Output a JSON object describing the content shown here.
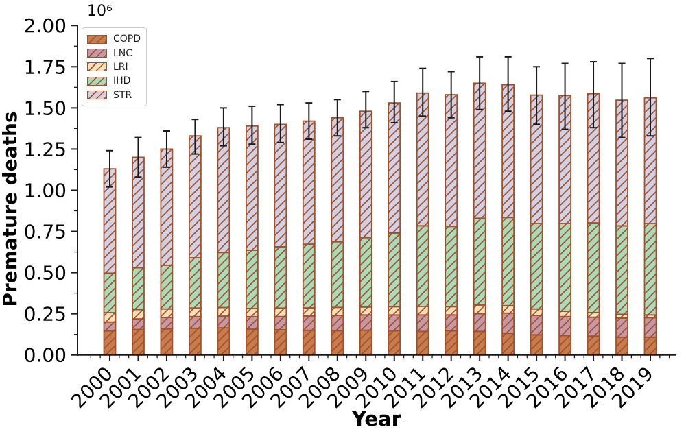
{
  "figure": {
    "ylabel": "Premature deaths",
    "xlabel": "Year",
    "offset_text": "10⁶"
  },
  "chart_data": {
    "type": "bar",
    "stacked": true,
    "title": "",
    "xlabel": "Year",
    "ylabel": "Premature deaths",
    "values_unit": "millions (axis shows 10^6)",
    "ylim": [
      0,
      2.0
    ],
    "y_ticks": [
      "0.00",
      "0.25",
      "0.50",
      "0.75",
      "1.00",
      "1.25",
      "1.50",
      "1.75",
      "2.00"
    ],
    "grid": false,
    "legend_position": "upper-left",
    "hatch_style": "/",
    "hatch_color": "#a0522d",
    "error_color": "#1a1a1a",
    "axis_color": "#1a1a1a",
    "categories": [
      "2000",
      "2001",
      "2002",
      "2003",
      "2004",
      "2005",
      "2006",
      "2007",
      "2008",
      "2009",
      "2010",
      "2011",
      "2012",
      "2013",
      "2014",
      "2015",
      "2016",
      "2017",
      "2018",
      "2019"
    ],
    "series": [
      {
        "name": "COPD",
        "color": "#c87c4d",
        "values": [
          0.146,
          0.155,
          0.158,
          0.162,
          0.165,
          0.157,
          0.153,
          0.15,
          0.147,
          0.15,
          0.146,
          0.143,
          0.146,
          0.143,
          0.131,
          0.122,
          0.118,
          0.115,
          0.108,
          0.108
        ]
      },
      {
        "name": "LNC",
        "color": "#c698a6",
        "values": [
          0.054,
          0.064,
          0.07,
          0.071,
          0.071,
          0.076,
          0.08,
          0.087,
          0.093,
          0.093,
          0.097,
          0.1,
          0.097,
          0.107,
          0.123,
          0.118,
          0.115,
          0.114,
          0.116,
          0.118
        ]
      },
      {
        "name": "LRI",
        "color": "#f8dfba",
        "values": [
          0.057,
          0.056,
          0.051,
          0.052,
          0.052,
          0.049,
          0.052,
          0.049,
          0.049,
          0.048,
          0.05,
          0.052,
          0.05,
          0.053,
          0.045,
          0.039,
          0.032,
          0.028,
          0.023,
          0.017
        ]
      },
      {
        "name": "IHD",
        "color": "#aadab9",
        "values": [
          0.24,
          0.254,
          0.266,
          0.305,
          0.334,
          0.354,
          0.372,
          0.387,
          0.398,
          0.421,
          0.447,
          0.489,
          0.487,
          0.527,
          0.535,
          0.519,
          0.533,
          0.545,
          0.537,
          0.555
        ]
      },
      {
        "name": "STR",
        "color": "#d3d0e4",
        "values": [
          0.633,
          0.671,
          0.705,
          0.74,
          0.758,
          0.754,
          0.743,
          0.747,
          0.753,
          0.768,
          0.79,
          0.806,
          0.8,
          0.82,
          0.806,
          0.78,
          0.777,
          0.784,
          0.763,
          0.763
        ]
      }
    ],
    "totals": [
      1.13,
      1.2,
      1.25,
      1.33,
      1.38,
      1.39,
      1.4,
      1.42,
      1.44,
      1.48,
      1.53,
      1.59,
      1.58,
      1.65,
      1.64,
      1.58,
      1.58,
      1.59,
      1.55,
      1.56
    ],
    "error_bars": {
      "low": [
        1.02,
        1.08,
        1.14,
        1.22,
        1.27,
        1.28,
        1.29,
        1.31,
        1.33,
        1.38,
        1.41,
        1.45,
        1.44,
        1.49,
        1.48,
        1.4,
        1.37,
        1.38,
        1.32,
        1.33
      ],
      "high": [
        1.24,
        1.32,
        1.36,
        1.43,
        1.5,
        1.51,
        1.52,
        1.53,
        1.55,
        1.6,
        1.66,
        1.74,
        1.72,
        1.81,
        1.81,
        1.75,
        1.77,
        1.78,
        1.77,
        1.8
      ]
    }
  }
}
